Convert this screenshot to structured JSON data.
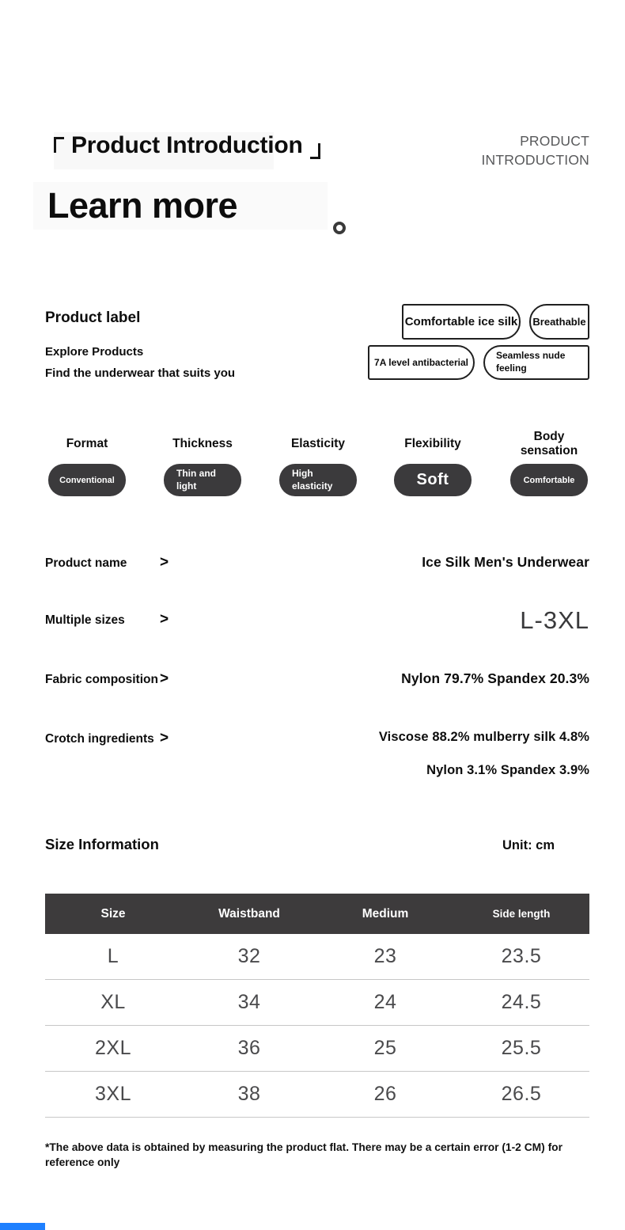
{
  "header": {
    "title": "Product Introduction",
    "corner_label_line1": "PRODUCT",
    "corner_label_line2": "INTRODUCTION",
    "subtitle": "Learn more"
  },
  "product_label": {
    "heading": "Product label",
    "line1": "Explore Products",
    "line2": "Find the underwear that suits you",
    "tags": [
      "Comfortable ice silk",
      "Breathable",
      "7A level antibacterial",
      "Seamless nude feeling"
    ]
  },
  "attributes": [
    {
      "label": "Format",
      "value": "Conventional"
    },
    {
      "label": "Thickness",
      "value": "Thin and light"
    },
    {
      "label": "Elasticity",
      "value": "High elasticity"
    },
    {
      "label": "Flexibility",
      "value": "Soft"
    },
    {
      "label": "Body sensation",
      "value": "Comfortable"
    }
  ],
  "specs": {
    "product_name": {
      "label": "Product name",
      "separator": ">",
      "value": "Ice Silk Men's Underwear"
    },
    "multiple_sizes": {
      "label": "Multiple sizes",
      "separator": ">",
      "value": "L-3XL"
    },
    "fabric_composition": {
      "label": "Fabric composition",
      "separator": ">",
      "value": "Nylon 79.7% Spandex 20.3%"
    },
    "crotch_ingredients": {
      "label": "Crotch ingredients",
      "separator": ">",
      "value_line1": "Viscose 88.2% mulberry silk 4.8%",
      "value_line2": "Nylon 3.1% Spandex 3.9%"
    }
  },
  "size_section": {
    "heading": "Size Information",
    "unit": "Unit: cm",
    "table": {
      "columns": [
        "Size",
        "Waistband",
        "Medium",
        "Side length"
      ],
      "rows": [
        [
          "L",
          "32",
          "23",
          "23.5"
        ],
        [
          "XL",
          "34",
          "24",
          "24.5"
        ],
        [
          "2XL",
          "36",
          "25",
          "25.5"
        ],
        [
          "3XL",
          "38",
          "26",
          "26.5"
        ]
      ]
    },
    "footnote": "*The above data is obtained by measuring the product flat. There may be a certain error (1-2 CM) for reference only"
  },
  "colors": {
    "pill_dark": "#3b3a3c",
    "table_header_bg": "#3d3b3c",
    "corner_text_grey": "#58595b",
    "divider_grey": "#c7c7c7",
    "accent_blue": "#1e80ff"
  }
}
